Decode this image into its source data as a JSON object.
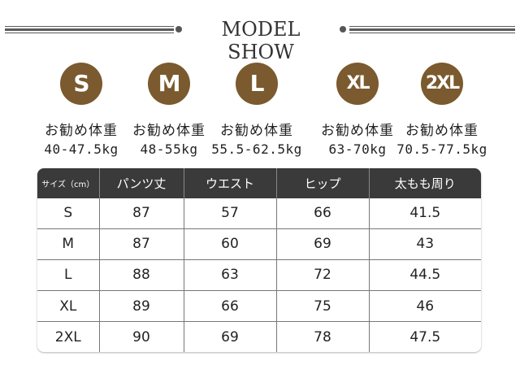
{
  "header": {
    "title": "MODEL SHOW"
  },
  "sizes": [
    {
      "code": "S",
      "rec_label": "お勧め体重",
      "weight": "40-47.5kg"
    },
    {
      "code": "M",
      "rec_label": "お勧め体重",
      "weight": "48-55kg"
    },
    {
      "code": "L",
      "rec_label": "お勧め体重",
      "weight": "55.5-62.5kg"
    },
    {
      "code": "XL",
      "rec_label": "お勧め体重",
      "weight": "63-70kg"
    },
    {
      "code": "2XL",
      "rec_label": "お勧め体重",
      "weight": "70.5-77.5kg"
    }
  ],
  "colors": {
    "badge": "#7a5a2e",
    "table_header": "#3a3a3a"
  },
  "table": {
    "headers": [
      "サイズ（cm）",
      "パンツ丈",
      "ウエスト",
      "ヒップ",
      "太もも周り"
    ],
    "rows": [
      [
        "S",
        "87",
        "57",
        "66",
        "41.5"
      ],
      [
        "M",
        "87",
        "60",
        "69",
        "43"
      ],
      [
        "L",
        "88",
        "63",
        "72",
        "44.5"
      ],
      [
        "XL",
        "89",
        "66",
        "75",
        "46"
      ],
      [
        "2XL",
        "90",
        "69",
        "78",
        "47.5"
      ]
    ]
  }
}
